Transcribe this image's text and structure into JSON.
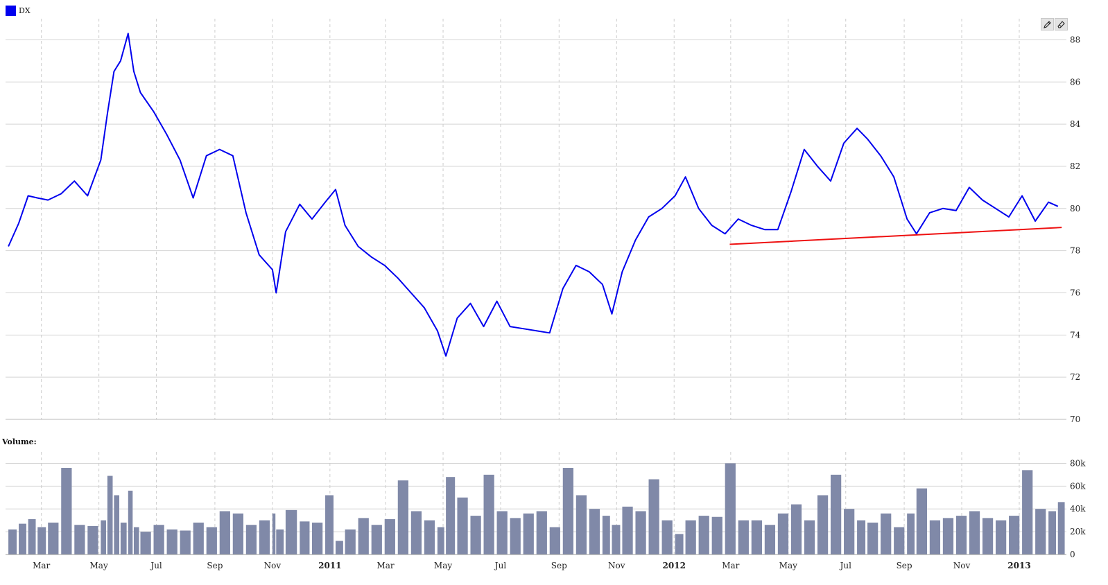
{
  "legend": {
    "series_name": "DX",
    "swatch_color": "#0000ee"
  },
  "volume_title": "Volume:",
  "tools": [
    {
      "name": "pencil-icon"
    },
    {
      "name": "eraser-icon"
    }
  ],
  "chart_data": [
    {
      "type": "line",
      "series": [
        {
          "name": "DX",
          "color": "#0000ee",
          "x": [
            "2010-01-25",
            "2010-02-05",
            "2010-02-15",
            "2010-02-25",
            "2010-03-08",
            "2010-03-22",
            "2010-04-05",
            "2010-04-19",
            "2010-05-03",
            "2010-05-10",
            "2010-05-17",
            "2010-05-24",
            "2010-06-01",
            "2010-06-07",
            "2010-06-14",
            "2010-06-28",
            "2010-07-12",
            "2010-07-26",
            "2010-08-09",
            "2010-08-23",
            "2010-09-06",
            "2010-09-20",
            "2010-10-04",
            "2010-10-18",
            "2010-11-01",
            "2010-11-05",
            "2010-11-15",
            "2010-11-30",
            "2010-12-13",
            "2010-12-27",
            "2011-01-07",
            "2011-01-17",
            "2011-01-31",
            "2011-02-14",
            "2011-02-28",
            "2011-03-14",
            "2011-03-28",
            "2011-04-11",
            "2011-04-25",
            "2011-05-04",
            "2011-05-16",
            "2011-05-30",
            "2011-06-13",
            "2011-06-27",
            "2011-07-11",
            "2011-07-25",
            "2011-08-08",
            "2011-08-22",
            "2011-09-05",
            "2011-09-19",
            "2011-10-03",
            "2011-10-17",
            "2011-10-27",
            "2011-11-07",
            "2011-11-21",
            "2011-12-05",
            "2011-12-19",
            "2012-01-02",
            "2012-01-13",
            "2012-01-27",
            "2012-02-10",
            "2012-02-24",
            "2012-03-09",
            "2012-03-23",
            "2012-04-06",
            "2012-04-20",
            "2012-05-04",
            "2012-05-18",
            "2012-06-01",
            "2012-06-15",
            "2012-06-29",
            "2012-07-13",
            "2012-07-24",
            "2012-08-07",
            "2012-08-21",
            "2012-09-04",
            "2012-09-14",
            "2012-09-28",
            "2012-10-12",
            "2012-10-26",
            "2012-11-09",
            "2012-11-23",
            "2012-12-07",
            "2012-12-21",
            "2013-01-04",
            "2013-01-18",
            "2013-02-01",
            "2013-02-11"
          ],
          "y": [
            78.2,
            79.3,
            80.6,
            80.5,
            80.4,
            80.7,
            81.3,
            80.6,
            82.3,
            84.5,
            86.5,
            87.0,
            88.3,
            86.5,
            85.5,
            84.6,
            83.5,
            82.3,
            80.5,
            82.5,
            82.8,
            82.5,
            79.8,
            77.8,
            77.1,
            76.0,
            78.9,
            80.2,
            79.5,
            80.3,
            80.9,
            79.2,
            78.2,
            77.7,
            77.3,
            76.7,
            76.0,
            75.3,
            74.2,
            73.0,
            74.8,
            75.5,
            74.4,
            75.6,
            74.4,
            74.3,
            74.2,
            74.1,
            76.2,
            77.3,
            77.0,
            76.4,
            75.0,
            77.0,
            78.5,
            79.6,
            80.0,
            80.6,
            81.5,
            80.0,
            79.2,
            78.8,
            79.5,
            79.2,
            79.0,
            79.0,
            80.8,
            82.8,
            82.0,
            81.3,
            83.1,
            83.8,
            83.3,
            82.5,
            81.5,
            79.5,
            78.8,
            79.8,
            80.0,
            79.9,
            81.0,
            80.4,
            80.0,
            79.6,
            80.6,
            79.4,
            80.3,
            80.1
          ]
        },
        {
          "name": "",
          "color": "#ee1111",
          "x": [
            "2012-02-29",
            "2013-02-15"
          ],
          "y": [
            78.3,
            79.1
          ]
        }
      ],
      "ylim": [
        70,
        89
      ],
      "yticks": [
        70,
        72,
        74,
        76,
        78,
        80,
        82,
        84,
        86,
        88
      ],
      "xticks": [
        {
          "date": "2010-03-01",
          "label": "Mar"
        },
        {
          "date": "2010-05-01",
          "label": "May"
        },
        {
          "date": "2010-07-01",
          "label": "Jul"
        },
        {
          "date": "2010-09-01",
          "label": "Sep"
        },
        {
          "date": "2010-11-01",
          "label": "Nov"
        },
        {
          "date": "2011-01-01",
          "label": "2011"
        },
        {
          "date": "2011-03-01",
          "label": "Mar"
        },
        {
          "date": "2011-05-01",
          "label": "May"
        },
        {
          "date": "2011-07-01",
          "label": "Jul"
        },
        {
          "date": "2011-09-01",
          "label": "Sep"
        },
        {
          "date": "2011-11-01",
          "label": "Nov"
        },
        {
          "date": "2012-01-01",
          "label": "2012"
        },
        {
          "date": "2012-03-01",
          "label": "Mar"
        },
        {
          "date": "2012-05-01",
          "label": "May"
        },
        {
          "date": "2012-07-01",
          "label": "Jul"
        },
        {
          "date": "2012-09-01",
          "label": "Sep"
        },
        {
          "date": "2012-11-01",
          "label": "Nov"
        },
        {
          "date": "2013-01-01",
          "label": "2013"
        }
      ],
      "xlim": [
        "2010-01-22",
        "2013-02-20"
      ],
      "grid": true,
      "title": "",
      "xlabel": "",
      "ylabel": ""
    },
    {
      "type": "bar",
      "series": [
        {
          "name": "Volume",
          "color": "#8089a8",
          "x": [
            "2010-01-25",
            "2010-02-05",
            "2010-02-15",
            "2010-02-25",
            "2010-03-08",
            "2010-03-22",
            "2010-04-05",
            "2010-04-19",
            "2010-05-03",
            "2010-05-10",
            "2010-05-17",
            "2010-05-24",
            "2010-06-01",
            "2010-06-07",
            "2010-06-14",
            "2010-06-28",
            "2010-07-12",
            "2010-07-26",
            "2010-08-09",
            "2010-08-23",
            "2010-09-06",
            "2010-09-20",
            "2010-10-04",
            "2010-10-18",
            "2010-11-01",
            "2010-11-05",
            "2010-11-15",
            "2010-11-30",
            "2010-12-13",
            "2010-12-27",
            "2011-01-07",
            "2011-01-17",
            "2011-01-31",
            "2011-02-14",
            "2011-02-28",
            "2011-03-14",
            "2011-03-28",
            "2011-04-11",
            "2011-04-25",
            "2011-05-04",
            "2011-05-16",
            "2011-05-30",
            "2011-06-13",
            "2011-06-27",
            "2011-07-11",
            "2011-07-25",
            "2011-08-08",
            "2011-08-22",
            "2011-09-05",
            "2011-09-19",
            "2011-10-03",
            "2011-10-17",
            "2011-10-27",
            "2011-11-07",
            "2011-11-21",
            "2011-12-05",
            "2011-12-19",
            "2012-01-02",
            "2012-01-13",
            "2012-01-27",
            "2012-02-10",
            "2012-02-24",
            "2012-03-09",
            "2012-03-23",
            "2012-04-06",
            "2012-04-20",
            "2012-05-04",
            "2012-05-18",
            "2012-06-01",
            "2012-06-15",
            "2012-06-29",
            "2012-07-13",
            "2012-07-24",
            "2012-08-07",
            "2012-08-21",
            "2012-09-04",
            "2012-09-14",
            "2012-09-28",
            "2012-10-12",
            "2012-10-26",
            "2012-11-09",
            "2012-11-23",
            "2012-12-07",
            "2012-12-21",
            "2013-01-04",
            "2013-01-18",
            "2013-02-01",
            "2013-02-11"
          ],
          "y": [
            22000,
            27000,
            31000,
            24000,
            28000,
            76000,
            26000,
            25000,
            30000,
            69000,
            52000,
            28000,
            56000,
            24000,
            20000,
            26000,
            22000,
            21000,
            28000,
            24000,
            38000,
            36000,
            26000,
            30000,
            36000,
            22000,
            39000,
            29000,
            28000,
            52000,
            12000,
            22000,
            32000,
            26000,
            31000,
            65000,
            38000,
            30000,
            24000,
            68000,
            50000,
            34000,
            70000,
            38000,
            32000,
            36000,
            38000,
            24000,
            76000,
            52000,
            40000,
            34000,
            26000,
            42000,
            38000,
            66000,
            30000,
            18000,
            30000,
            34000,
            33000,
            80000,
            30000,
            30000,
            26000,
            36000,
            44000,
            30000,
            52000,
            70000,
            40000,
            30000,
            28000,
            36000,
            24000,
            36000,
            58000,
            30000,
            32000,
            34000,
            38000,
            32000,
            30000,
            34000,
            74000,
            40000,
            38000,
            46000
          ]
        }
      ],
      "ylim": [
        0,
        90000
      ],
      "yticks": [
        0,
        20000,
        40000,
        60000,
        80000
      ],
      "ytick_labels": [
        "0",
        "20k",
        "40k",
        "60k",
        "80k"
      ],
      "xlim": [
        "2010-01-22",
        "2013-02-20"
      ],
      "grid": true,
      "title": "",
      "xlabel": "",
      "ylabel": ""
    }
  ]
}
